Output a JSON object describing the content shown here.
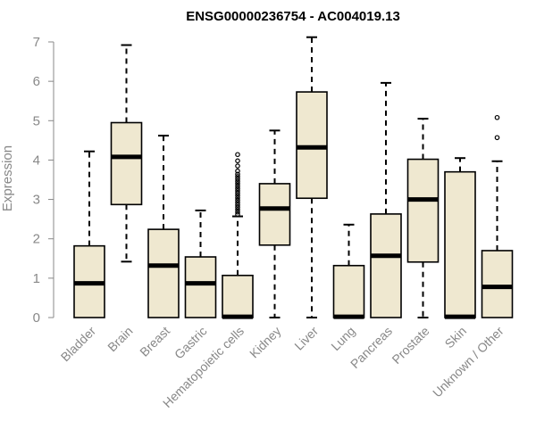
{
  "chart_data": {
    "type": "boxplot",
    "title": "ENSG00000236754 - AC004019.13",
    "ylabel": "Expression",
    "ylim": [
      0,
      7
    ],
    "yticks": [
      0,
      1,
      2,
      3,
      4,
      5,
      6,
      7
    ],
    "box_color": "#efe8d0",
    "categories": [
      "Bladder",
      "Brain",
      "Breast",
      "Gastric",
      "Hematopoietic cells",
      "Kidney",
      "Liver",
      "Lung",
      "Pancreas",
      "Prostate",
      "Skin",
      "Unknown / Other"
    ],
    "boxes": [
      {
        "min": 0,
        "q1": 0,
        "median": 0.87,
        "q3": 1.82,
        "max": 4.22,
        "outliers": []
      },
      {
        "min": 1.42,
        "q1": 2.87,
        "median": 4.08,
        "q3": 4.95,
        "max": 6.92,
        "outliers": []
      },
      {
        "min": 0,
        "q1": 0,
        "median": 1.32,
        "q3": 2.24,
        "max": 4.62,
        "outliers": []
      },
      {
        "min": 0,
        "q1": 0,
        "median": 0.87,
        "q3": 1.54,
        "max": 2.72,
        "outliers": []
      },
      {
        "min": 0,
        "q1": 0,
        "median": 0.02,
        "q3": 1.07,
        "max": 2.57,
        "outliers": [
          2.62,
          2.68,
          2.74,
          2.8,
          2.86,
          2.92,
          2.98,
          3.04,
          3.1,
          3.16,
          3.22,
          3.28,
          3.34,
          3.4,
          3.46,
          3.52,
          3.58,
          3.64,
          3.72,
          3.85,
          3.98,
          4.14
        ]
      },
      {
        "min": 0,
        "q1": 1.84,
        "median": 2.77,
        "q3": 3.4,
        "max": 4.75,
        "outliers": []
      },
      {
        "min": 0,
        "q1": 3.03,
        "median": 4.32,
        "q3": 5.73,
        "max": 7.12,
        "outliers": []
      },
      {
        "min": 0,
        "q1": 0,
        "median": 0.02,
        "q3": 1.32,
        "max": 2.36,
        "outliers": []
      },
      {
        "min": 0,
        "q1": 0,
        "median": 1.57,
        "q3": 2.63,
        "max": 5.96,
        "outliers": []
      },
      {
        "min": 0,
        "q1": 1.41,
        "median": 3.0,
        "q3": 4.02,
        "max": 5.05,
        "outliers": []
      },
      {
        "min": 0,
        "q1": 0,
        "median": 0.02,
        "q3": 3.7,
        "max": 4.05,
        "outliers": []
      },
      {
        "min": 0,
        "q1": 0,
        "median": 0.78,
        "q3": 1.7,
        "max": 3.97,
        "outliers": [
          4.57,
          5.08
        ]
      }
    ]
  }
}
